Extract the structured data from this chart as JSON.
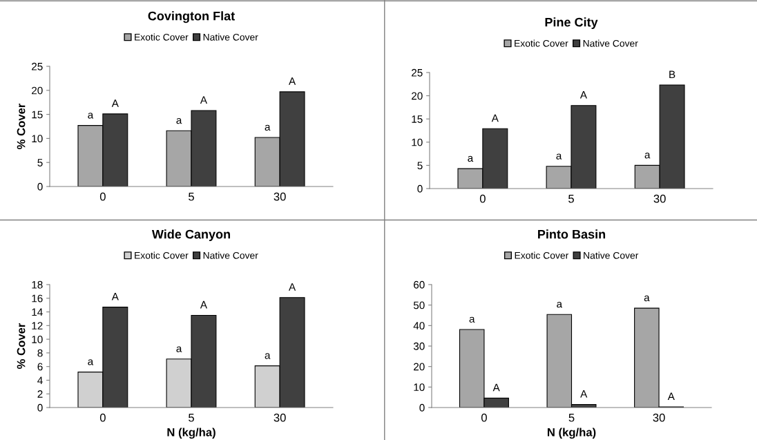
{
  "chart_data": [
    {
      "type": "bar",
      "title": "Covington Flat",
      "ylabel": "% Cover",
      "categories": [
        "0",
        "5",
        "30"
      ],
      "ylim": [
        0,
        25
      ],
      "yticks": [
        0,
        5,
        10,
        15,
        20,
        25
      ],
      "legend": "top",
      "grid": false,
      "series": [
        {
          "name": "Exotic Cover",
          "color": "#a6a6a6",
          "values": [
            12.7,
            11.6,
            10.2
          ],
          "value_labels": [
            "a",
            "a",
            "a"
          ]
        },
        {
          "name": "Native Cover",
          "color": "#404040",
          "values": [
            15.1,
            15.8,
            19.7
          ],
          "value_labels": [
            "A",
            "A",
            "A"
          ]
        }
      ]
    },
    {
      "type": "bar",
      "title": "Pine City",
      "categories": [
        "0",
        "5",
        "30"
      ],
      "ylim": [
        0,
        25
      ],
      "yticks": [
        0,
        5,
        10,
        15,
        20,
        25
      ],
      "legend": "top",
      "grid": false,
      "series": [
        {
          "name": "Exotic Cover",
          "color": "#a6a6a6",
          "values": [
            4.3,
            4.8,
            5.0
          ],
          "value_labels": [
            "a",
            "a",
            "a"
          ]
        },
        {
          "name": "Native Cover",
          "color": "#404040",
          "values": [
            12.9,
            17.9,
            22.3
          ],
          "value_labels": [
            "A",
            "A",
            "B"
          ]
        }
      ]
    },
    {
      "type": "bar",
      "title": "Wide Canyon",
      "ylabel": "% Cover",
      "xlabel": "N (kg/ha)",
      "categories": [
        "0",
        "5",
        "30"
      ],
      "ylim": [
        0,
        18
      ],
      "yticks": [
        0,
        2,
        4,
        6,
        8,
        10,
        12,
        14,
        16,
        18
      ],
      "legend": "top",
      "grid": false,
      "series": [
        {
          "name": "Exotic Cover",
          "color": "#d0d0d0",
          "values": [
            5.2,
            7.1,
            6.1
          ],
          "value_labels": [
            "a",
            "a",
            "a"
          ]
        },
        {
          "name": "Native Cover",
          "color": "#404040",
          "values": [
            14.7,
            13.5,
            16.1
          ],
          "value_labels": [
            "A",
            "A",
            "A"
          ]
        }
      ]
    },
    {
      "type": "bar",
      "title": "Pinto Basin",
      "xlabel": "N (kg/ha)",
      "categories": [
        "0",
        "5",
        "30"
      ],
      "ylim": [
        0,
        60
      ],
      "yticks": [
        0,
        10,
        20,
        30,
        40,
        50,
        60
      ],
      "legend": "top",
      "grid": false,
      "series": [
        {
          "name": "Exotic Cover",
          "color": "#a6a6a6",
          "values": [
            38.1,
            45.4,
            48.5
          ],
          "value_labels": [
            "a",
            "a",
            "a"
          ]
        },
        {
          "name": "Native Cover",
          "color": "#404040",
          "values": [
            4.6,
            1.5,
            0.3
          ],
          "value_labels": [
            "A",
            "A",
            "A"
          ]
        }
      ]
    }
  ]
}
